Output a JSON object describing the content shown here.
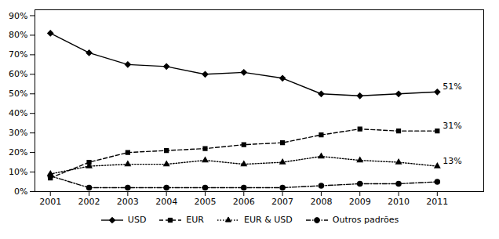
{
  "chart_data": {
    "type": "line",
    "x": [
      2001,
      2002,
      2003,
      2004,
      2005,
      2006,
      2007,
      2008,
      2009,
      2010,
      2011
    ],
    "series": [
      {
        "name": "USD",
        "color": "#000000",
        "marker": "diamond",
        "line_style": "solid",
        "values": [
          0.81,
          0.71,
          0.65,
          0.64,
          0.6,
          0.61,
          0.58,
          0.5,
          0.49,
          0.5,
          0.51
        ]
      },
      {
        "name": "EUR",
        "color": "#000000",
        "marker": "square",
        "line_style": "dashed",
        "values": [
          0.07,
          0.15,
          0.2,
          0.21,
          0.22,
          0.24,
          0.25,
          0.29,
          0.32,
          0.31,
          0.31
        ]
      },
      {
        "name": "EUR & USD",
        "color": "#000000",
        "marker": "triangle",
        "line_style": "dotted",
        "values": [
          0.09,
          0.13,
          0.14,
          0.14,
          0.16,
          0.14,
          0.15,
          0.18,
          0.16,
          0.15,
          0.13
        ]
      },
      {
        "name": "Outros padrões",
        "color": "#000000",
        "marker": "circle",
        "line_style": "dashdot",
        "values": [
          0.08,
          0.02,
          0.02,
          0.02,
          0.02,
          0.02,
          0.02,
          0.03,
          0.04,
          0.04,
          0.05
        ]
      }
    ],
    "xlim": [
      2000.6,
      2012.2
    ],
    "xticks": [
      2001,
      2002,
      2003,
      2004,
      2005,
      2006,
      2007,
      2008,
      2009,
      2010,
      2011
    ],
    "ylim": [
      0,
      0.93
    ],
    "yticks": [
      {
        "value": 0,
        "label": "0%"
      },
      {
        "value": 0.1,
        "label": "10%"
      },
      {
        "value": 0.2,
        "label": "20%"
      },
      {
        "value": 0.3,
        "label": "30%"
      },
      {
        "value": 0.4,
        "label": "40%"
      },
      {
        "value": 0.5,
        "label": "50%"
      },
      {
        "value": 0.6,
        "label": "60%"
      },
      {
        "value": 0.7,
        "label": "70%"
      },
      {
        "value": 0.8,
        "label": "80%"
      },
      {
        "value": 0.9,
        "label": "90%"
      }
    ],
    "grid": false,
    "legend": "bottom",
    "annotations": [
      {
        "text": "51%",
        "series": "USD"
      },
      {
        "text": "31%",
        "series": "EUR"
      },
      {
        "text": "13%",
        "series": "EUR & USD"
      }
    ]
  }
}
